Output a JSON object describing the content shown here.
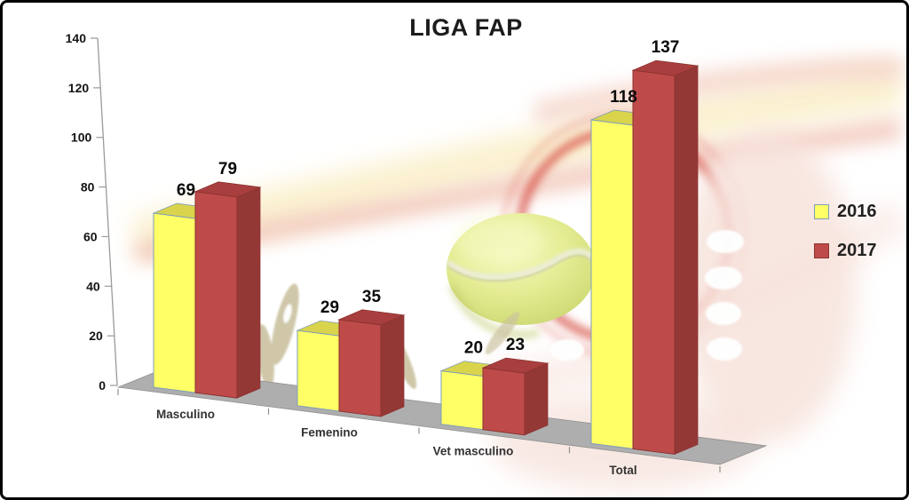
{
  "chart_data": {
    "type": "bar",
    "variant": "3d-clustered-column",
    "title": "LIGA FAP",
    "categories": [
      "Masculino",
      "Femenino",
      "Vet masculino",
      "Total"
    ],
    "series": [
      {
        "name": "2016",
        "values": [
          69,
          29,
          20,
          118
        ],
        "front_color": "#FFFF66",
        "top_color": "#D9D44C",
        "side_color": "#E8E455",
        "outline_color": "#7F9DB9"
      },
      {
        "name": "2017",
        "values": [
          79,
          35,
          23,
          137
        ],
        "front_color": "#BE4B49",
        "top_color": "#A83F3E",
        "side_color": "#943836",
        "outline_color": "#8C3331"
      }
    ],
    "data_labels": true,
    "ylim": [
      0,
      140
    ],
    "ytick_step": 20,
    "ytick_labels": [
      "0",
      "20",
      "40",
      "60",
      "80",
      "100",
      "120",
      "140"
    ],
    "xlabel": "",
    "ylabel": "",
    "legend_position": "right",
    "grid": false,
    "floor_color": "#AEAEAE",
    "axis_color": "#9a9a9a",
    "background_theme": "tennis ball with red swoosh watermark"
  }
}
